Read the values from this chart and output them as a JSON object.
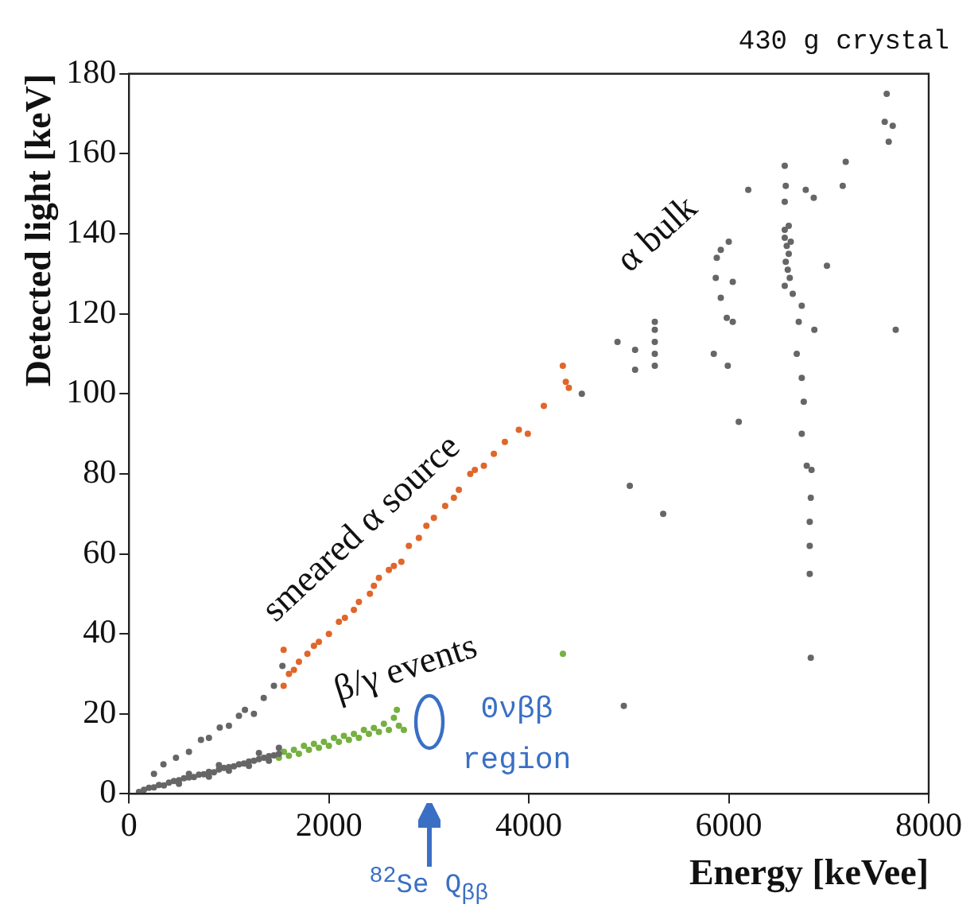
{
  "chart_data": {
    "type": "scatter",
    "title": "430 g crystal",
    "xlabel": "Energy [keVee]",
    "ylabel": "Detected light [keV]",
    "xlim": [
      0,
      8000
    ],
    "xticks": [
      0,
      2000,
      4000,
      6000,
      8000
    ],
    "ylim": [
      0,
      180
    ],
    "yticks": [
      0,
      20,
      40,
      60,
      80,
      100,
      120,
      140,
      160,
      180
    ],
    "grid": false,
    "legend": false,
    "marker": "circle",
    "series": [
      {
        "color": "#666666",
        "x": [
          100,
          150,
          200,
          250,
          300,
          350,
          400,
          450,
          500,
          550,
          600,
          650,
          700,
          750,
          800,
          850,
          900,
          950,
          1000,
          1050,
          1100,
          1150,
          1200,
          1250,
          1300,
          1350,
          1400,
          1450,
          1500,
          500,
          800,
          1000,
          1200,
          1400,
          600,
          900,
          1300,
          1500,
          250,
          345,
          470,
          600,
          720,
          800,
          908,
          1000,
          1100,
          1160,
          1250,
          1348,
          1450,
          1535,
          4530,
          4887,
          4950,
          5010,
          5063,
          5063,
          5260,
          5260,
          5260,
          5260,
          5260,
          5344,
          5850,
          5990,
          5870,
          5920,
          5980,
          6040,
          5920,
          6000,
          5880,
          6040,
          6100,
          6195,
          6560,
          6570,
          6560,
          6560,
          6560,
          6580,
          6600,
          6570,
          6590,
          6610,
          6560,
          6620,
          6600,
          6640,
          6700,
          6730,
          6680,
          6730,
          6750,
          6730,
          6780,
          6828,
          6820,
          6810,
          6810,
          6810,
          6820,
          6856,
          6982,
          6770,
          6850,
          7140,
          7170,
          7580,
          7560,
          7640,
          7600,
          7670
        ],
        "values": [
          0.5,
          1,
          1.5,
          1.6,
          2.2,
          2.1,
          2.8,
          3.2,
          3.4,
          3.9,
          4.1,
          4.2,
          4.8,
          4.9,
          5.5,
          5.4,
          6.1,
          6.5,
          6.7,
          6.9,
          7.4,
          7.6,
          8.1,
          8.3,
          8.7,
          9,
          9.4,
          9.6,
          10,
          2.5,
          4.3,
          5.8,
          7,
          8.3,
          5,
          7.2,
          10.2,
          11.5,
          5,
          7.4,
          9,
          10.5,
          13.5,
          14,
          16.6,
          17,
          19.5,
          21,
          20,
          24,
          27,
          32,
          100,
          113,
          22,
          77,
          111,
          106,
          118,
          116,
          113,
          110,
          107,
          70,
          110,
          107,
          129,
          124,
          119,
          118,
          136,
          138,
          134,
          128,
          93,
          151,
          157,
          152,
          148,
          141,
          139,
          137,
          135,
          133,
          131,
          129,
          127,
          138,
          142,
          125,
          118,
          122,
          110,
          104,
          98,
          90,
          82,
          81,
          74,
          68,
          62,
          55,
          34,
          116,
          132,
          151,
          149,
          152,
          158,
          175,
          168,
          167,
          163,
          116
        ]
      },
      {
        "color": "#e0662a",
        "x": [
          1547,
          1547,
          1600,
          1650,
          1700,
          1785,
          1850,
          1900,
          2000,
          2100,
          2160,
          2250,
          2300,
          2410,
          2450,
          2500,
          2600,
          2650,
          2725,
          2800,
          2900,
          2975,
          3050,
          3163,
          3250,
          3300,
          3414,
          3460,
          3550,
          3650,
          3760,
          3900,
          3990,
          4150,
          4340,
          4370,
          4400
        ],
        "values": [
          36,
          27,
          30,
          31,
          33,
          35,
          37,
          38,
          40,
          43,
          44,
          46,
          48,
          50,
          52,
          54,
          56,
          57,
          58,
          62,
          64,
          67,
          69,
          72,
          74,
          76,
          80,
          81,
          82,
          85,
          88,
          91,
          90,
          97,
          107,
          103,
          101.5
        ]
      },
      {
        "color": "#76b041",
        "x": [
          1500,
          1550,
          1600,
          1650,
          1700,
          1750,
          1800,
          1850,
          1900,
          1950,
          2000,
          2050,
          2100,
          2150,
          2200,
          2250,
          2300,
          2350,
          2400,
          2450,
          2500,
          2550,
          2600,
          2650,
          2680,
          2700,
          2750,
          4341
        ],
        "values": [
          9,
          10.5,
          9.5,
          11,
          10,
          12,
          11,
          12.5,
          11.5,
          13,
          12,
          14,
          13,
          14.5,
          13.5,
          15,
          14,
          16,
          15,
          16.5,
          15.5,
          17.5,
          16,
          19,
          21,
          17,
          16,
          35
        ]
      }
    ],
    "annotations": [
      "smeared α source",
      "α bulk",
      "β/γ events",
      "0νββ region",
      "$^{82}$Se Q$_{ββ}$"
    ]
  }
}
